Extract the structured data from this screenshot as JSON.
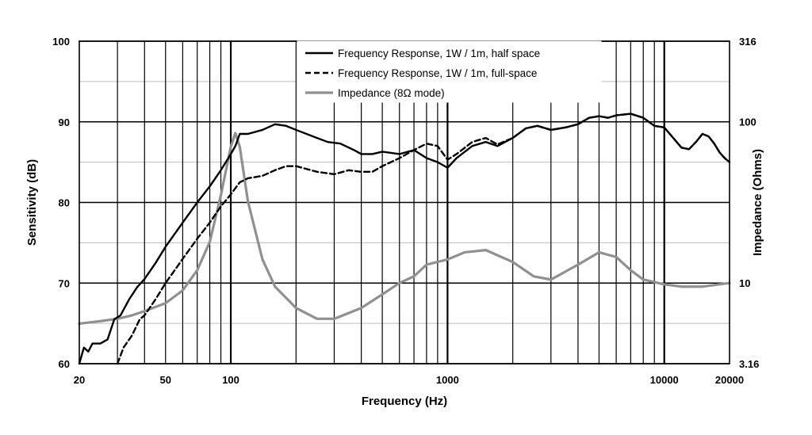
{
  "chart_data": {
    "type": "line",
    "xlabel": "Frequency (Hz)",
    "ylabel": "Sensitivity (dB)",
    "y2label": "Impedance (Ohms)",
    "xscale": "log",
    "xlim": [
      20,
      20000
    ],
    "ylim": [
      60,
      100
    ],
    "y2lim": [
      3.16,
      316
    ],
    "y2scale": "log",
    "grid": true,
    "legend_position": "top-right",
    "x_tick_labels": [
      "20",
      "50",
      "100",
      "1000",
      "10000",
      "20000"
    ],
    "x_tick_values": [
      20,
      50,
      100,
      1000,
      10000,
      20000
    ],
    "y_tick_labels": [
      "60",
      "70",
      "80",
      "90",
      "100"
    ],
    "y_tick_values": [
      60,
      70,
      80,
      90,
      100
    ],
    "y2_tick_labels": [
      "3.16",
      "10",
      "100",
      "316"
    ],
    "y2_tick_values": [
      3.16,
      10,
      100,
      316
    ],
    "series": [
      {
        "name": "Frequency Response, 1W / 1m, half space",
        "style": "solid",
        "color": "#000000",
        "axis": "left",
        "points": [
          [
            20,
            60
          ],
          [
            21,
            62
          ],
          [
            22,
            61.5
          ],
          [
            23,
            62.5
          ],
          [
            25,
            62.5
          ],
          [
            27,
            63
          ],
          [
            29,
            65.5
          ],
          [
            31,
            66
          ],
          [
            34,
            68
          ],
          [
            37,
            69.5
          ],
          [
            40,
            70.5
          ],
          [
            45,
            72.5
          ],
          [
            50,
            74.5
          ],
          [
            60,
            77.5
          ],
          [
            70,
            80
          ],
          [
            80,
            82
          ],
          [
            90,
            84
          ],
          [
            100,
            86
          ],
          [
            105,
            87
          ],
          [
            110,
            88.5
          ],
          [
            120,
            88.5
          ],
          [
            140,
            89
          ],
          [
            160,
            89.7
          ],
          [
            180,
            89.5
          ],
          [
            200,
            89
          ],
          [
            250,
            88
          ],
          [
            280,
            87.5
          ],
          [
            320,
            87.3
          ],
          [
            370,
            86.5
          ],
          [
            400,
            86
          ],
          [
            450,
            86
          ],
          [
            500,
            86.3
          ],
          [
            600,
            86
          ],
          [
            700,
            86.5
          ],
          [
            800,
            85.5
          ],
          [
            900,
            85
          ],
          [
            1000,
            84.3
          ],
          [
            1100,
            85.5
          ],
          [
            1300,
            87
          ],
          [
            1500,
            87.5
          ],
          [
            1700,
            87
          ],
          [
            2000,
            88
          ],
          [
            2300,
            89.2
          ],
          [
            2600,
            89.5
          ],
          [
            3000,
            89
          ],
          [
            3500,
            89.3
          ],
          [
            4000,
            89.7
          ],
          [
            4500,
            90.5
          ],
          [
            5000,
            90.7
          ],
          [
            5500,
            90.5
          ],
          [
            6000,
            90.8
          ],
          [
            7000,
            91
          ],
          [
            8000,
            90.5
          ],
          [
            9000,
            89.5
          ],
          [
            10000,
            89.3
          ],
          [
            11000,
            88
          ],
          [
            12000,
            86.8
          ],
          [
            13000,
            86.6
          ],
          [
            14000,
            87.5
          ],
          [
            15000,
            88.5
          ],
          [
            16000,
            88.2
          ],
          [
            17000,
            87.3
          ],
          [
            18000,
            86.2
          ],
          [
            19000,
            85.5
          ],
          [
            20000,
            85
          ]
        ]
      },
      {
        "name": "Frequency Response, 1W / 1m, full-space",
        "style": "dashed",
        "color": "#000000",
        "axis": "left",
        "points": [
          [
            30,
            60
          ],
          [
            32,
            62
          ],
          [
            35,
            63.5
          ],
          [
            38,
            65.5
          ],
          [
            40,
            66
          ],
          [
            45,
            68
          ],
          [
            50,
            70
          ],
          [
            60,
            73
          ],
          [
            70,
            75.5
          ],
          [
            80,
            77.5
          ],
          [
            90,
            79.5
          ],
          [
            100,
            81
          ],
          [
            110,
            82.5
          ],
          [
            120,
            83
          ],
          [
            140,
            83.3
          ],
          [
            160,
            84
          ],
          [
            180,
            84.5
          ],
          [
            200,
            84.5
          ],
          [
            250,
            83.8
          ],
          [
            300,
            83.5
          ],
          [
            350,
            84
          ],
          [
            400,
            83.8
          ],
          [
            450,
            83.8
          ],
          [
            500,
            84.5
          ],
          [
            600,
            85.5
          ],
          [
            700,
            86.5
          ],
          [
            800,
            87.3
          ],
          [
            900,
            87
          ],
          [
            1000,
            85.3
          ],
          [
            1100,
            86
          ],
          [
            1300,
            87.5
          ],
          [
            1500,
            88
          ],
          [
            1700,
            87.2
          ],
          [
            2000,
            88
          ],
          [
            2300,
            89.2
          ],
          [
            2600,
            89.5
          ],
          [
            3000,
            89
          ],
          [
            3500,
            89.3
          ],
          [
            4000,
            89.7
          ],
          [
            4500,
            90.5
          ],
          [
            5000,
            90.7
          ],
          [
            5500,
            90.5
          ],
          [
            6000,
            90.8
          ],
          [
            7000,
            91
          ],
          [
            8000,
            90.5
          ],
          [
            9000,
            89.5
          ],
          [
            10000,
            89.3
          ],
          [
            11000,
            88
          ],
          [
            12000,
            86.8
          ],
          [
            13000,
            86.6
          ],
          [
            14000,
            87.5
          ],
          [
            15000,
            88.5
          ],
          [
            16000,
            88.2
          ],
          [
            17000,
            87.3
          ],
          [
            18000,
            86.2
          ],
          [
            19000,
            85.5
          ],
          [
            20000,
            85
          ]
        ]
      },
      {
        "name": "Impedance (8Ω mode)",
        "style": "solid",
        "color": "#909090",
        "axis": "right",
        "points": [
          [
            20,
            5.6
          ],
          [
            25,
            5.8
          ],
          [
            30,
            6.0
          ],
          [
            35,
            6.3
          ],
          [
            40,
            6.7
          ],
          [
            50,
            7.5
          ],
          [
            60,
            9.0
          ],
          [
            70,
            12
          ],
          [
            80,
            18
          ],
          [
            90,
            35
          ],
          [
            100,
            70
          ],
          [
            105,
            85
          ],
          [
            110,
            70
          ],
          [
            120,
            32
          ],
          [
            140,
            14
          ],
          [
            160,
            9.5
          ],
          [
            200,
            7.0
          ],
          [
            250,
            6.0
          ],
          [
            300,
            6.0
          ],
          [
            400,
            7.0
          ],
          [
            500,
            8.5
          ],
          [
            600,
            10
          ],
          [
            700,
            11
          ],
          [
            800,
            13
          ],
          [
            1000,
            14
          ],
          [
            1200,
            15.5
          ],
          [
            1500,
            16
          ],
          [
            2000,
            13.5
          ],
          [
            2500,
            11
          ],
          [
            3000,
            10.5
          ],
          [
            4000,
            13
          ],
          [
            5000,
            15.5
          ],
          [
            6000,
            14.5
          ],
          [
            7000,
            12
          ],
          [
            8000,
            10.5
          ],
          [
            10000,
            9.8
          ],
          [
            12000,
            9.5
          ],
          [
            15000,
            9.5
          ],
          [
            20000,
            10
          ]
        ]
      }
    ]
  }
}
